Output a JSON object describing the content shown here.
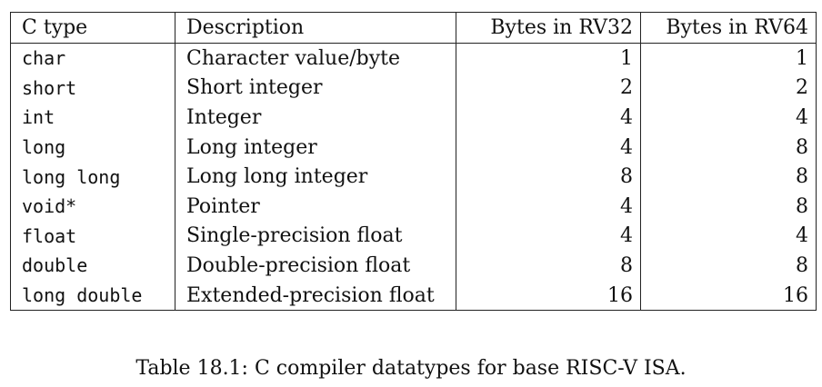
{
  "table": {
    "headers": {
      "c_type": "C type",
      "description": "Description",
      "rv32": "Bytes in RV32",
      "rv64": "Bytes in RV64"
    },
    "rows": [
      {
        "c_type": "char",
        "description": "Character value/byte",
        "rv32": "1",
        "rv64": "1"
      },
      {
        "c_type": "short",
        "description": "Short integer",
        "rv32": "2",
        "rv64": "2"
      },
      {
        "c_type": "int",
        "description": "Integer",
        "rv32": "4",
        "rv64": "4"
      },
      {
        "c_type": "long",
        "description": "Long integer",
        "rv32": "4",
        "rv64": "8"
      },
      {
        "c_type": "long long",
        "description": "Long long integer",
        "rv32": "8",
        "rv64": "8"
      },
      {
        "c_type": "void*",
        "description": "Pointer",
        "rv32": "4",
        "rv64": "8"
      },
      {
        "c_type": "float",
        "description": "Single-precision float",
        "rv32": "4",
        "rv64": "4"
      },
      {
        "c_type": "double",
        "description": "Double-precision float",
        "rv32": "8",
        "rv64": "8"
      },
      {
        "c_type": "long double",
        "description": "Extended-precision float",
        "rv32": "16",
        "rv64": "16"
      }
    ]
  },
  "caption": "Table 18.1: C compiler datatypes for base RISC-V ISA."
}
